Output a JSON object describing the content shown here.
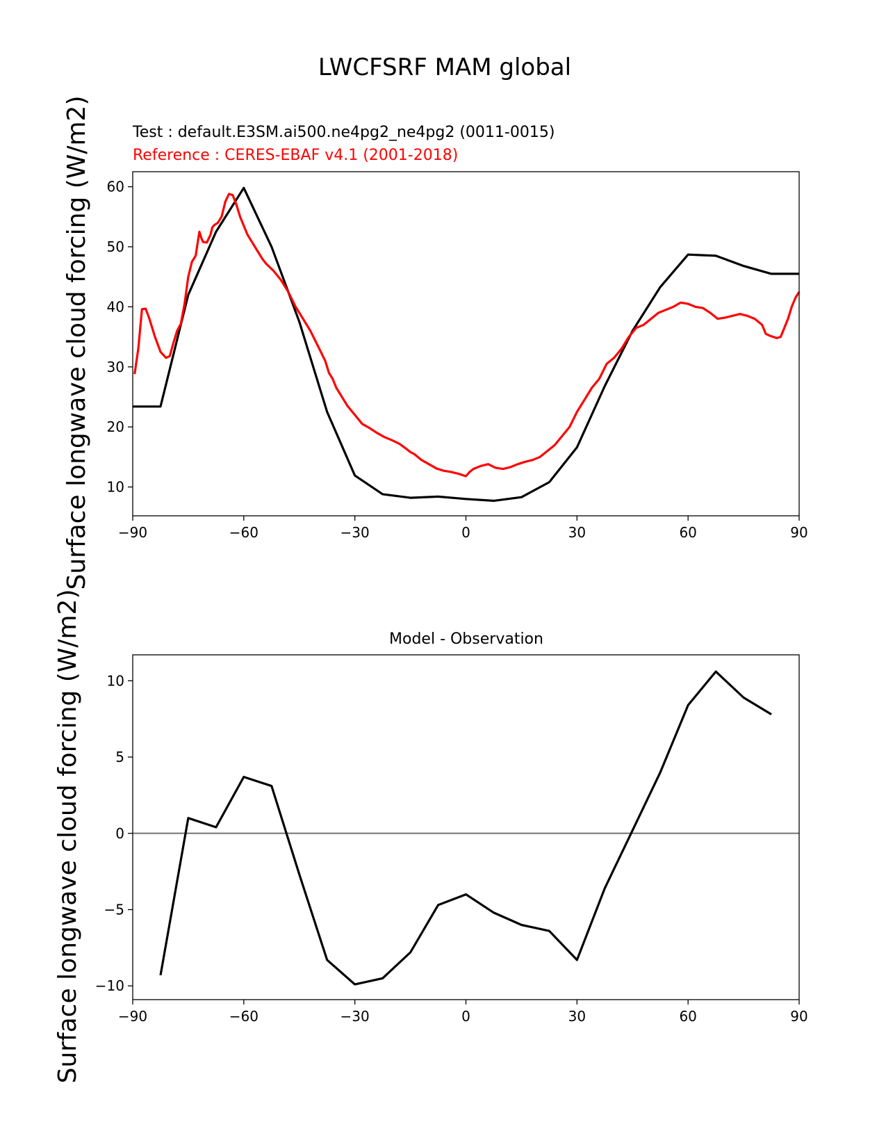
{
  "figure": {
    "title": "LWCFSRF MAM global",
    "ylabel": "Surface longwave cloud forcing (W/m2)",
    "colors": {
      "test": "#000000",
      "reference": "#ff0000",
      "zero_line": "#808080"
    }
  },
  "chart_data": [
    {
      "type": "line",
      "test_label": "Test : default.E3SM.ai500.ne4pg2_ne4pg2 (0011-0015)",
      "reference_label": "Reference : CERES-EBAF v4.1 (2001-2018)",
      "ylabel": "Surface longwave cloud forcing (W/m2)",
      "xlim": [
        -90,
        90
      ],
      "ylim": [
        5.2,
        62.5
      ],
      "xticks": [
        -90,
        -60,
        -30,
        0,
        30,
        60,
        90
      ],
      "xtick_labels": [
        "−90",
        "−60",
        "−30",
        "0",
        "30",
        "60",
        "90"
      ],
      "yticks": [
        10,
        20,
        30,
        40,
        50,
        60
      ],
      "ytick_labels": [
        "10",
        "20",
        "30",
        "40",
        "50",
        "60"
      ],
      "series": [
        {
          "name": "Test : default.E3SM.ai500.ne4pg2_ne4pg2 (0011-0015)",
          "color": "#000000",
          "x": [
            -90,
            -82.5,
            -75,
            -67.5,
            -60,
            -52.5,
            -45,
            -37.5,
            -30,
            -22.5,
            -15,
            -7.5,
            0,
            7.5,
            15,
            22.5,
            30,
            37.5,
            45,
            52.5,
            60,
            67.5,
            75,
            82.5,
            90
          ],
          "y": [
            23.4,
            23.4,
            42.0,
            52.5,
            59.8,
            50.0,
            37.5,
            22.5,
            11.9,
            8.8,
            8.2,
            8.4,
            8.0,
            7.7,
            8.3,
            10.8,
            16.6,
            26.8,
            36.0,
            43.3,
            48.7,
            48.5,
            46.8,
            45.5,
            45.5
          ]
        },
        {
          "name": "Reference : CERES-EBAF v4.1 (2001-2018)",
          "color": "#ff0000",
          "x": [
            -89.5,
            -88.5,
            -87.5,
            -86.5,
            -85.5,
            -84,
            -82.5,
            -81,
            -80,
            -79,
            -78,
            -77,
            -76,
            -75,
            -74,
            -73,
            -72,
            -71.5,
            -71,
            -70,
            -69,
            -68.5,
            -68,
            -67,
            -66,
            -65,
            -64,
            -63,
            -62,
            -61,
            -60,
            -59,
            -58,
            -57,
            -56,
            -55,
            -54,
            -52,
            -50,
            -48,
            -46,
            -44,
            -42,
            -40,
            -38,
            -37,
            -36,
            -35,
            -34,
            -33,
            -32,
            -30,
            -28,
            -26,
            -24,
            -22,
            -20,
            -18,
            -16,
            -15,
            -14,
            -12,
            -10,
            -8,
            -6,
            -4,
            -2,
            -1,
            0,
            1,
            2,
            4,
            6,
            8,
            10,
            12,
            14,
            16,
            18,
            20,
            22,
            24,
            26,
            28,
            30,
            32,
            34,
            36,
            38,
            40,
            42,
            44,
            46,
            48,
            50,
            52,
            54,
            56,
            58,
            60,
            62,
            64,
            66,
            68,
            70,
            72,
            74,
            76,
            78,
            80,
            81,
            82,
            83,
            84,
            85,
            86,
            87,
            88,
            89,
            90
          ],
          "y": [
            28.8,
            33.0,
            39.6,
            39.7,
            38.0,
            35.0,
            32.5,
            31.5,
            31.8,
            34.0,
            36.0,
            37.2,
            40.5,
            45.0,
            47.5,
            48.5,
            52.5,
            51.5,
            50.8,
            50.7,
            52.0,
            53.2,
            53.6,
            54.0,
            55.0,
            57.5,
            58.8,
            58.6,
            57.0,
            55.0,
            53.5,
            52.0,
            51.0,
            50.0,
            49.0,
            48.0,
            47.2,
            46.0,
            44.5,
            42.5,
            40.0,
            38.0,
            36.0,
            33.5,
            31.0,
            29.0,
            28.0,
            26.5,
            25.5,
            24.5,
            23.5,
            22.0,
            20.5,
            19.8,
            19.0,
            18.3,
            17.8,
            17.2,
            16.3,
            15.8,
            15.5,
            14.5,
            13.8,
            13.1,
            12.7,
            12.5,
            12.2,
            12.0,
            11.8,
            12.5,
            13.0,
            13.5,
            13.8,
            13.2,
            13.0,
            13.3,
            13.8,
            14.2,
            14.5,
            15.0,
            16.0,
            17.0,
            18.5,
            20.0,
            22.5,
            24.5,
            26.5,
            28.0,
            30.5,
            31.5,
            33.0,
            35.0,
            36.5,
            37.0,
            38.0,
            39.0,
            39.5,
            40.0,
            40.7,
            40.5,
            40.0,
            39.8,
            39.0,
            38.0,
            38.2,
            38.5,
            38.8,
            38.5,
            38.0,
            37.0,
            35.5,
            35.2,
            35.0,
            34.8,
            35.0,
            36.5,
            38.0,
            40.0,
            41.5,
            42.5
          ]
        }
      ]
    },
    {
      "type": "line",
      "title": "Model - Observation",
      "ylabel": "Surface longwave cloud forcing (W/m2)",
      "xlim": [
        -90,
        90
      ],
      "ylim": [
        -10.9,
        11.7
      ],
      "xticks": [
        -90,
        -60,
        -30,
        0,
        30,
        60,
        90
      ],
      "xtick_labels": [
        "−90",
        "−60",
        "−30",
        "0",
        "30",
        "60",
        "90"
      ],
      "yticks": [
        -10,
        -5,
        0,
        5,
        10
      ],
      "ytick_labels": [
        "−10",
        "−5",
        "0",
        "5",
        "10"
      ],
      "zero_line": 0,
      "series": [
        {
          "color": "#000000",
          "x": [
            -82.5,
            -75,
            -67.5,
            -60,
            -52.5,
            -45,
            -37.5,
            -30,
            -22.5,
            -15,
            -7.5,
            0,
            7.5,
            15,
            22.5,
            30,
            37.5,
            45,
            52.5,
            60,
            67.5,
            75,
            82.5
          ],
          "y": [
            -9.3,
            1.0,
            0.4,
            3.7,
            3.1,
            -2.7,
            -8.3,
            -9.9,
            -9.5,
            -7.8,
            -4.7,
            -4.0,
            -5.2,
            -6.0,
            -6.4,
            -8.3,
            -3.6,
            0.2,
            4.0,
            8.4,
            10.6,
            8.9,
            7.8
          ]
        }
      ]
    }
  ]
}
